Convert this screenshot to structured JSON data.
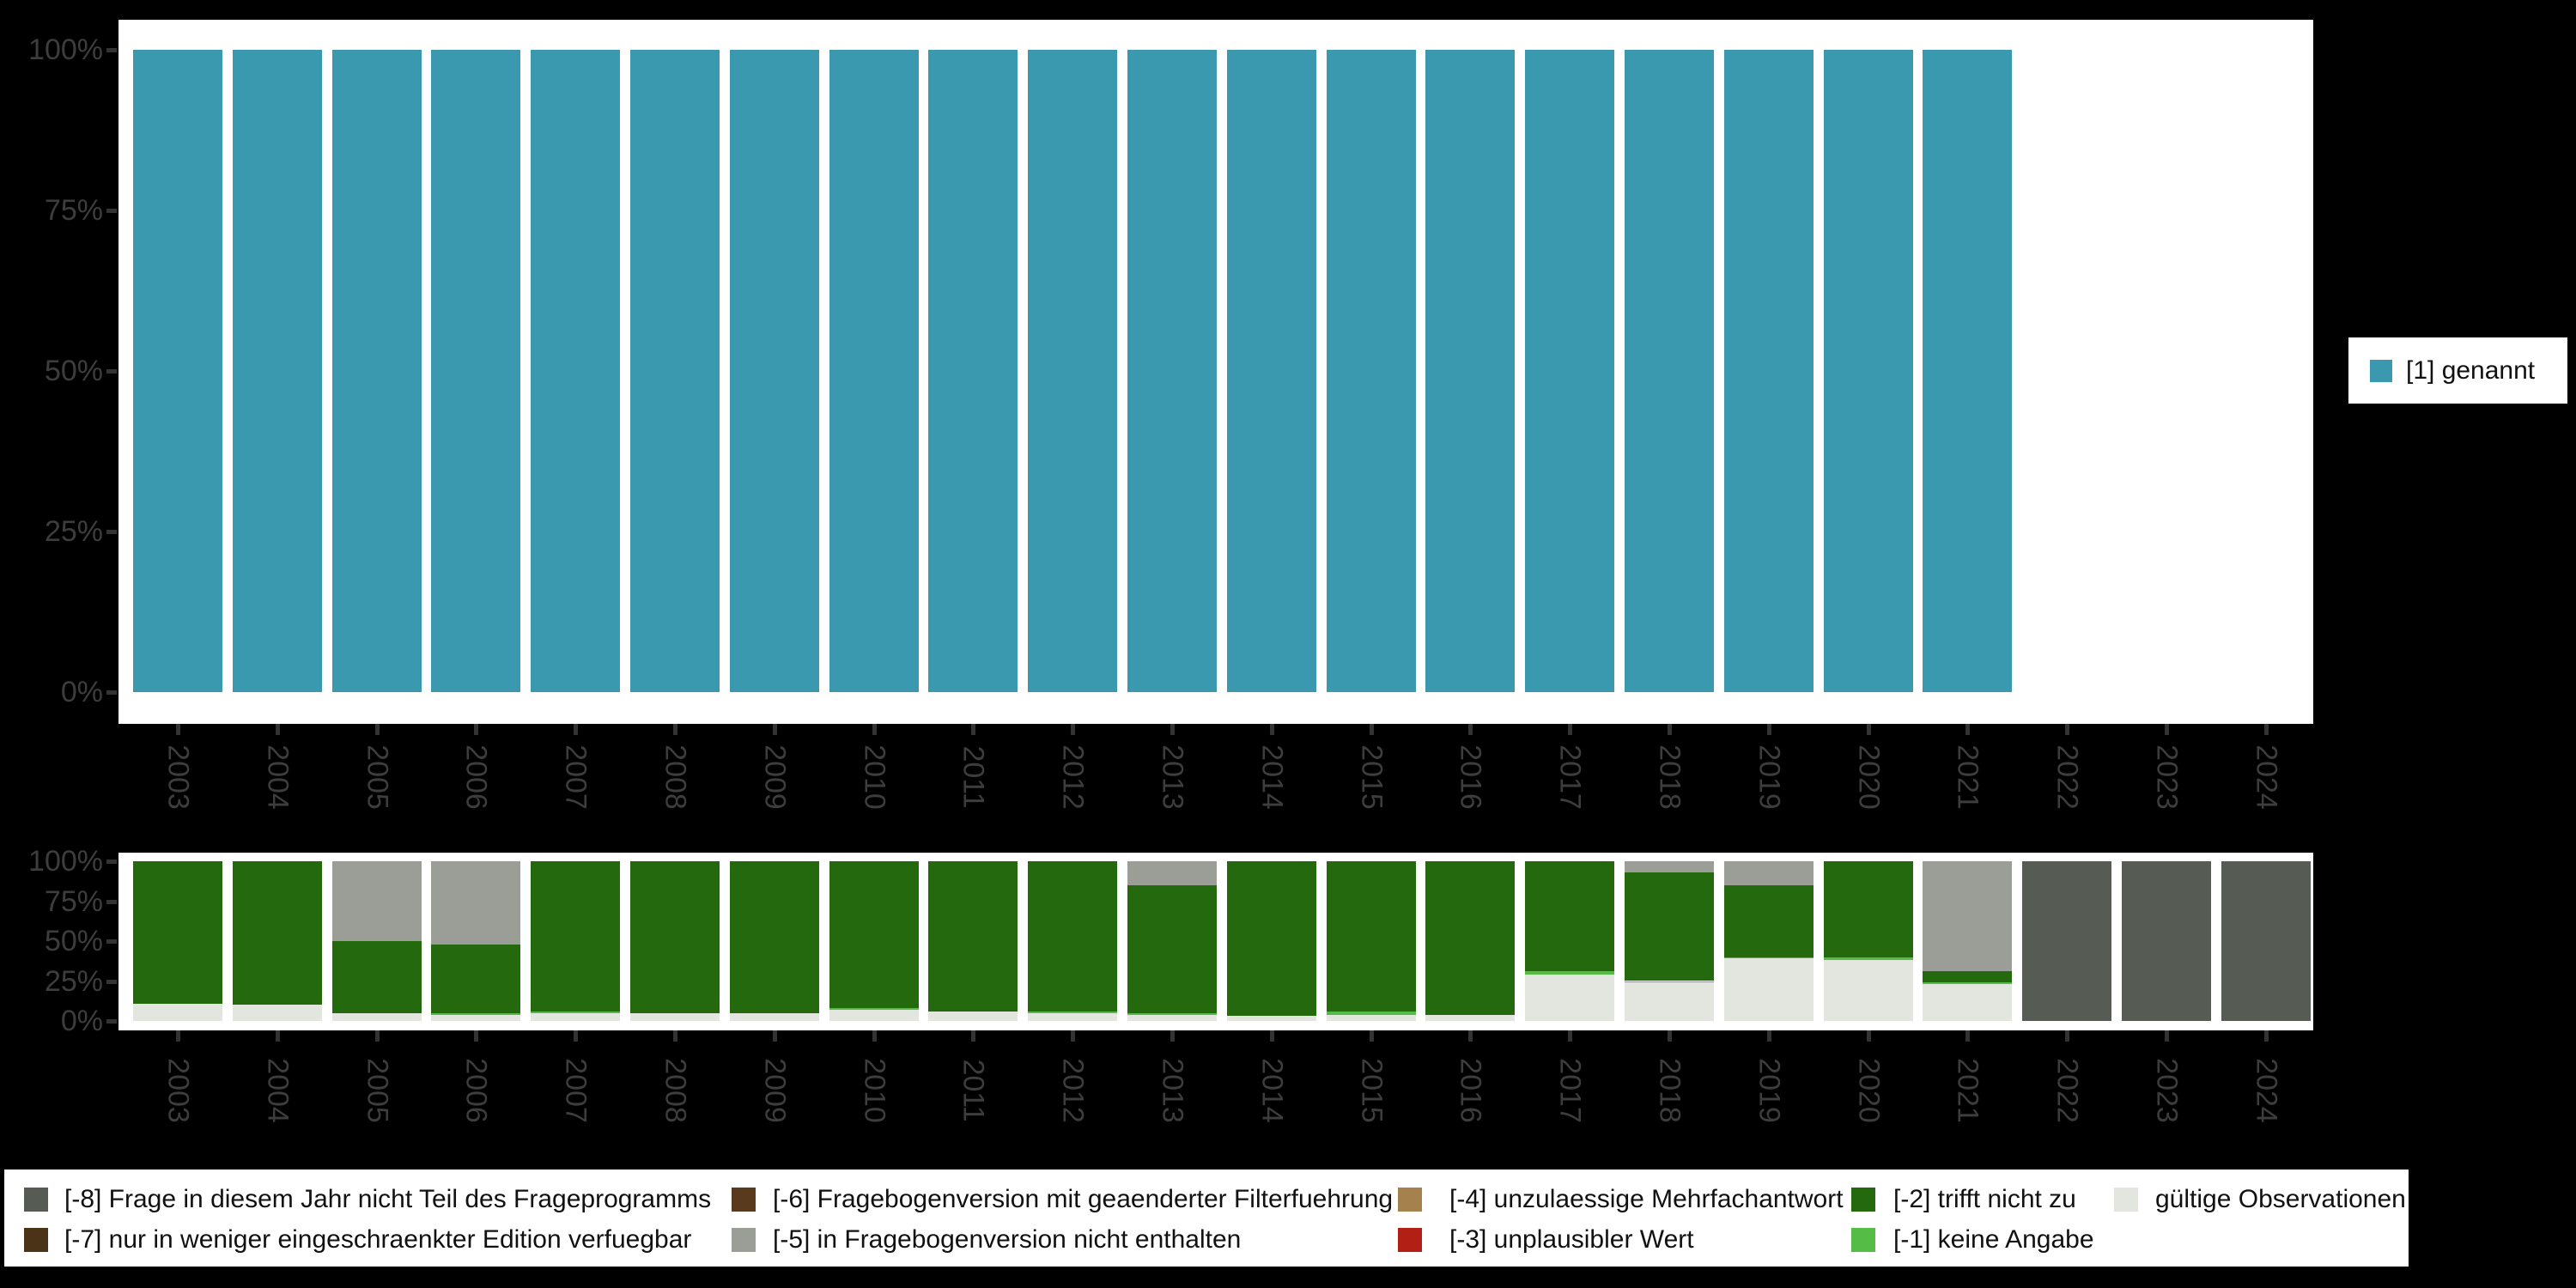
{
  "colors": {
    "background": "#000000",
    "plot_background": "#ffffff",
    "axis_text": "#3d3d3d",
    "tick": "#333333",
    "legend_text": "#111111"
  },
  "top_legend": {
    "label": "[1] genannt",
    "color": "#3a99af"
  },
  "chart_data": [
    {
      "type": "bar",
      "stacked": true,
      "title": "",
      "xlabel": "",
      "ylabel": "",
      "ylim": [
        0,
        100
      ],
      "grid": false,
      "legend_position": "right-outside",
      "y_tick_labels": [
        "0%",
        "25%",
        "50%",
        "75%",
        "100%"
      ],
      "categories": [
        "2003",
        "2004",
        "2005",
        "2006",
        "2007",
        "2008",
        "2009",
        "2010",
        "2011",
        "2012",
        "2013",
        "2014",
        "2015",
        "2016",
        "2017",
        "2018",
        "2019",
        "2020",
        "2021",
        "2022",
        "2023",
        "2024"
      ],
      "series": [
        {
          "name": "[1] genannt",
          "color": "#3a99af",
          "values": [
            100,
            100,
            100,
            100,
            100,
            100,
            100,
            100,
            100,
            100,
            100,
            100,
            100,
            100,
            100,
            100,
            100,
            100,
            100,
            0,
            0,
            0
          ]
        }
      ]
    },
    {
      "type": "bar",
      "stacked": true,
      "title": "",
      "xlabel": "",
      "ylabel": "",
      "ylim": [
        0,
        100
      ],
      "grid": false,
      "legend_position": "bottom-outside",
      "y_tick_labels": [
        "0%",
        "25%",
        "50%",
        "75%",
        "100%"
      ],
      "categories": [
        "2003",
        "2004",
        "2005",
        "2006",
        "2007",
        "2008",
        "2009",
        "2010",
        "2011",
        "2012",
        "2013",
        "2014",
        "2015",
        "2016",
        "2017",
        "2018",
        "2019",
        "2020",
        "2021",
        "2022",
        "2023",
        "2024"
      ],
      "series": [
        {
          "name": "gültige Observationen",
          "color": "#e2e6de",
          "values": [
            11,
            10,
            5,
            4,
            5,
            5,
            5,
            7,
            6,
            5,
            4,
            3,
            4,
            4,
            29,
            24,
            39,
            38,
            23,
            0,
            0,
            0
          ]
        },
        {
          "name": "[-1] keine Angabe",
          "color": "#55bd45",
          "values": [
            0,
            0,
            0,
            1,
            1,
            0,
            0,
            1,
            0,
            1,
            1,
            0,
            2,
            0,
            2,
            1,
            1,
            2,
            1,
            0,
            0,
            0
          ]
        },
        {
          "name": "[-2] trifft nicht zu",
          "color": "#24690e",
          "values": [
            89,
            90,
            45,
            43,
            94,
            95,
            95,
            92,
            94,
            94,
            80,
            97,
            94,
            96,
            69,
            68,
            45,
            60,
            7,
            0,
            0,
            0
          ]
        },
        {
          "name": "[-5] in Fragebogenversion nicht enthalten",
          "color": "#9a9e96",
          "values": [
            0,
            0,
            50,
            52,
            0,
            0,
            0,
            0,
            0,
            0,
            15,
            0,
            0,
            0,
            0,
            7,
            15,
            0,
            69,
            0,
            0,
            0
          ]
        },
        {
          "name": "[-8] Frage in diesem Jahr nicht Teil des Frageprogramms",
          "color": "#565c53",
          "values": [
            0,
            0,
            0,
            0,
            0,
            0,
            0,
            0,
            0,
            0,
            0,
            0,
            0,
            0,
            0,
            0,
            0,
            0,
            0,
            100,
            100,
            100
          ]
        }
      ]
    }
  ],
  "bottom_legend": {
    "columns": [
      [
        {
          "label": "[-8] Frage in diesem Jahr nicht Teil des Frageprogramms",
          "color": "#565c53"
        },
        {
          "label": "[-7] nur in weniger eingeschraenkter Edition verfuegbar",
          "color": "#4b3318"
        }
      ],
      [
        {
          "label": "[-6] Fragebogenversion mit geaenderter Filterfuehrung",
          "color": "#5a3a1c"
        },
        {
          "label": "[-5] in Fragebogenversion nicht enthalten",
          "color": "#9a9e96"
        }
      ],
      [
        {
          "label": "[-4] unzulaessige Mehrfachantwort",
          "color": "#a5824d"
        },
        {
          "label": "[-3] unplausibler Wert",
          "color": "#b22015"
        }
      ],
      [
        {
          "label": "[-2] trifft nicht zu",
          "color": "#24690e"
        },
        {
          "label": "[-1] keine Angabe",
          "color": "#55bd45"
        }
      ],
      [
        {
          "label": "gültige Observationen",
          "color": "#e2e6de"
        }
      ]
    ]
  }
}
